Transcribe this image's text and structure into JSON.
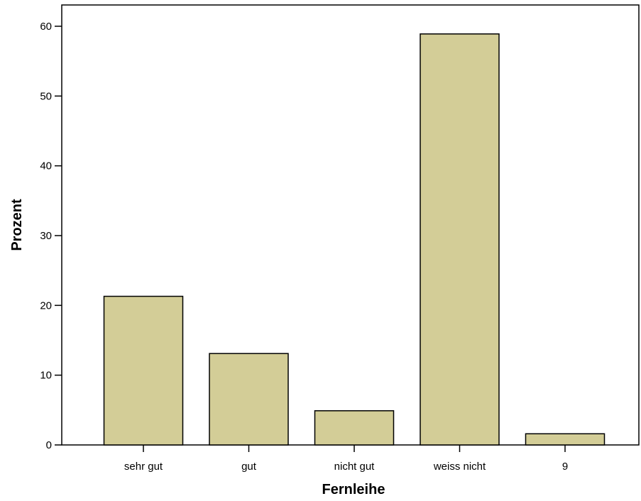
{
  "chart_data": {
    "type": "bar",
    "title": "",
    "xlabel": "Fernleihe",
    "ylabel": "Prozent",
    "categories": [
      "sehr gut",
      "gut",
      "nicht gut",
      "weiss nicht",
      "9"
    ],
    "values": [
      21.3,
      13.1,
      4.9,
      58.9,
      1.6
    ],
    "ylim": [
      0,
      60
    ],
    "yticks": [
      "0",
      "10",
      "20",
      "30",
      "40",
      "50",
      "60"
    ],
    "grid": false,
    "legend": "none",
    "bar_color": "#d3cd97",
    "edge_color": "#000000"
  }
}
